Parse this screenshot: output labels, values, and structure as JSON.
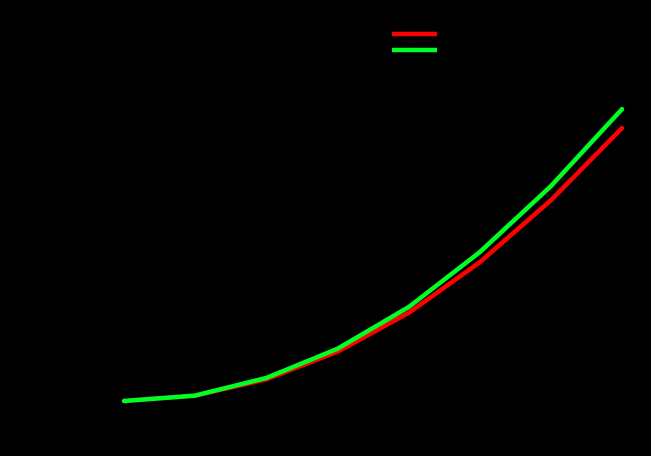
{
  "chart_data": {
    "type": "line",
    "title": "",
    "xlabel": "",
    "ylabel": "",
    "background": "#000000",
    "axes_visible": false,
    "grid": false,
    "legend_position": "top-center",
    "x": [
      0,
      1,
      2,
      3,
      4,
      5,
      6,
      7
    ],
    "xlim": [
      0,
      7
    ],
    "ylim": [
      0,
      100
    ],
    "series": [
      {
        "color": "#ff0000",
        "values": [
          0,
          1.6,
          6.4,
          14.5,
          26.0,
          40.9,
          59.2,
          80.5
        ]
      },
      {
        "color": "#00ff22",
        "values": [
          0,
          1.6,
          6.8,
          15.4,
          27.7,
          43.9,
          63.4,
          86.1
        ]
      }
    ]
  }
}
